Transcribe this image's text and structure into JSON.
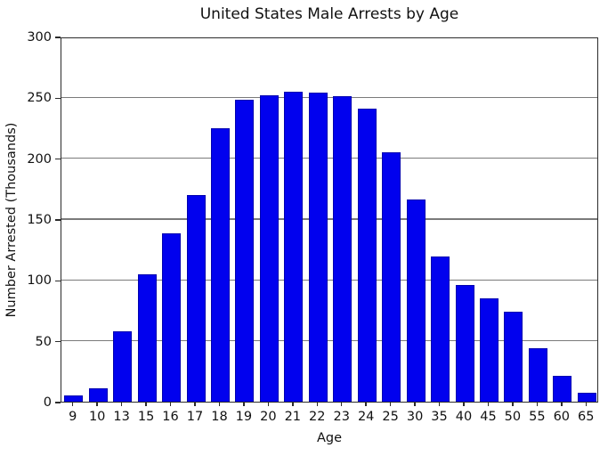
{
  "chart_data": {
    "type": "bar",
    "title": "United States Male Arrests by Age",
    "xlabel": "Age",
    "ylabel": "Number Arrested (Thousands)",
    "categories": [
      "9",
      "10",
      "13",
      "15",
      "16",
      "17",
      "18",
      "19",
      "20",
      "21",
      "22",
      "23",
      "24",
      "25",
      "30",
      "35",
      "40",
      "45",
      "50",
      "55",
      "60",
      "65"
    ],
    "values": [
      5,
      11,
      58,
      105,
      138,
      170,
      225,
      248,
      252,
      255,
      254,
      251,
      241,
      205,
      166,
      119,
      96,
      85,
      74,
      44,
      21,
      7
    ],
    "ylim": [
      0,
      300
    ],
    "yticks": [
      0,
      50,
      100,
      150,
      200,
      250,
      300
    ],
    "grid": "horizontal-behind-bars",
    "legend": "none",
    "colors": {
      "bar_fill": "#0101ee",
      "bar_edge": "#0000b0",
      "gridline": "#7a7a7a",
      "spine": "#2b2b2b",
      "text": "#111111",
      "background": "#ffffff"
    }
  }
}
